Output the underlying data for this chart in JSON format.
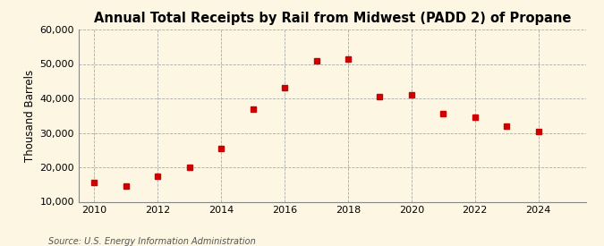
{
  "title": "Annual Total Receipts by Rail from Midwest (PADD 2) of Propane",
  "ylabel": "Thousand Barrels",
  "source": "Source: U.S. Energy Information Administration",
  "years": [
    2010,
    2011,
    2012,
    2013,
    2014,
    2015,
    2016,
    2017,
    2018,
    2019,
    2020,
    2021,
    2022,
    2023,
    2024
  ],
  "values": [
    15500,
    14500,
    17500,
    20000,
    25500,
    37000,
    43000,
    51000,
    51500,
    40500,
    41000,
    35500,
    34500,
    32000,
    30500
  ],
  "marker_color": "#cc0000",
  "marker": "s",
  "marker_size": 4,
  "background_color": "#fdf6e3",
  "grid_color": "#aaaaaa",
  "ylim": [
    10000,
    60000
  ],
  "yticks": [
    10000,
    20000,
    30000,
    40000,
    50000,
    60000
  ],
  "xlim": [
    2009.5,
    2025.5
  ],
  "xticks": [
    2010,
    2012,
    2014,
    2016,
    2018,
    2020,
    2022,
    2024
  ],
  "title_fontsize": 10.5,
  "ylabel_fontsize": 8.5,
  "tick_fontsize": 8,
  "source_fontsize": 7
}
